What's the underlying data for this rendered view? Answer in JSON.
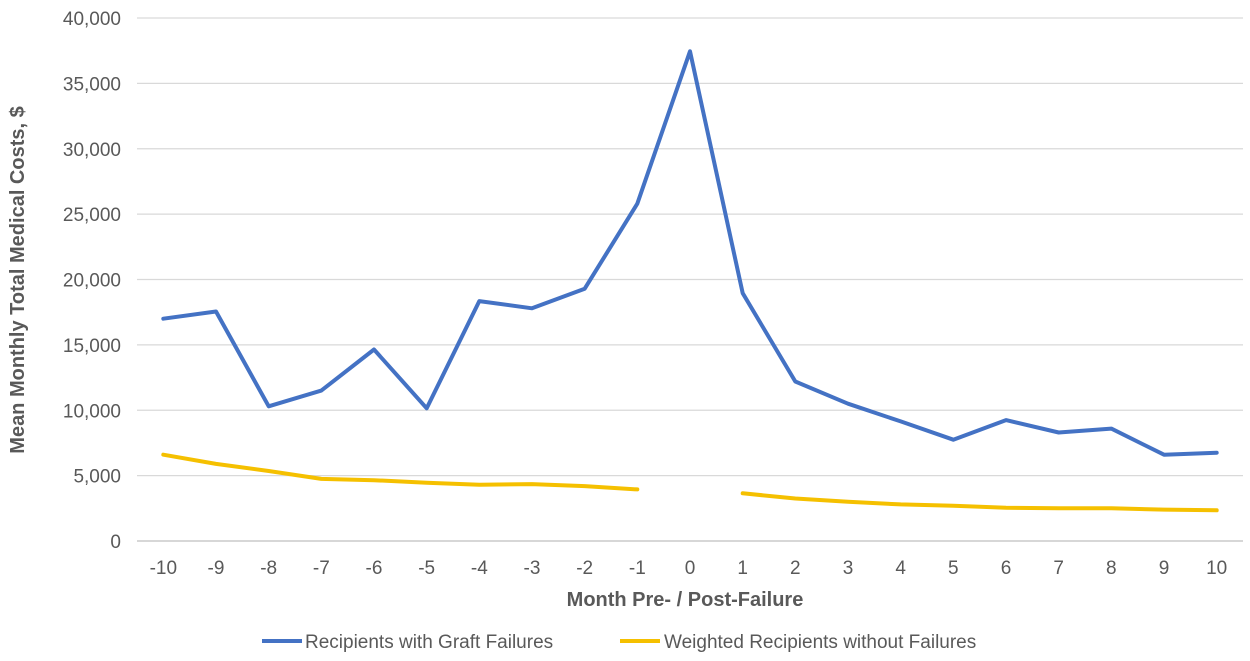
{
  "chart_data": {
    "type": "line",
    "title": "",
    "xlabel": "Month Pre- / Post-Failure",
    "ylabel": "Mean Monthly Total Medical Costs, $",
    "x": [
      -10,
      -9,
      -8,
      -7,
      -6,
      -5,
      -4,
      -3,
      -2,
      -1,
      0,
      1,
      2,
      3,
      4,
      5,
      6,
      7,
      8,
      9,
      10
    ],
    "x_tick_labels": [
      "-10",
      "-9",
      "-8",
      "-7",
      "-6",
      "-5",
      "-4",
      "-3",
      "-2",
      "-1",
      "0",
      "1",
      "2",
      "3",
      "4",
      "5",
      "6",
      "7",
      "8",
      "9",
      "10"
    ],
    "ylim": [
      0,
      40000
    ],
    "y_ticks": [
      0,
      5000,
      10000,
      15000,
      20000,
      25000,
      30000,
      35000,
      40000
    ],
    "y_tick_labels": [
      "0",
      "5,000",
      "10,000",
      "15,000",
      "20,000",
      "25,000",
      "30,000",
      "35,000",
      "40,000"
    ],
    "grid": "horizontal",
    "legend_position": "bottom",
    "series": [
      {
        "name": "Recipients with Graft Failures",
        "color": "#4472C4",
        "values": [
          17000,
          17550,
          10300,
          11500,
          14650,
          10150,
          18350,
          17800,
          19300,
          25800,
          37450,
          18950,
          12200,
          10500,
          9150,
          7750,
          9250,
          8300,
          8600,
          6600,
          6750
        ]
      },
      {
        "name": "Weighted Recipients without Failures",
        "color": "#F5C000",
        "values": [
          6600,
          5900,
          5350,
          4750,
          4650,
          4450,
          4300,
          4350,
          4200,
          3950,
          null,
          3650,
          3250,
          3000,
          2800,
          2700,
          2550,
          2500,
          2500,
          2400,
          2350
        ]
      }
    ]
  }
}
